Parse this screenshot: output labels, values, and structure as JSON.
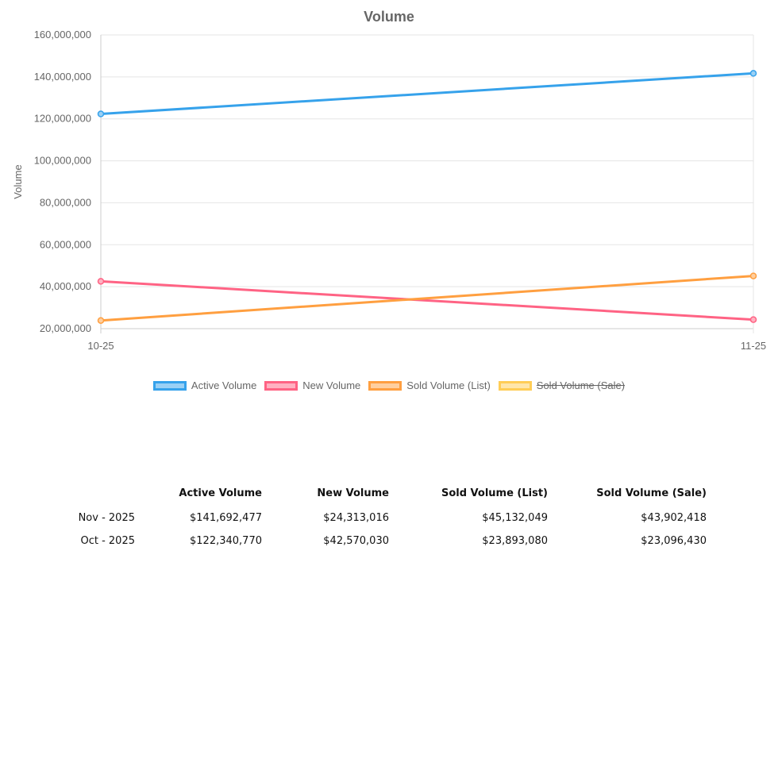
{
  "chart_data": {
    "type": "line",
    "title": "Volume",
    "ylabel": "Volume",
    "xlabel": "",
    "categories": [
      "10-25",
      "11-25"
    ],
    "ylim": [
      20000000,
      160000000
    ],
    "yticks": [
      "20,000,000",
      "40,000,000",
      "60,000,000",
      "80,000,000",
      "100,000,000",
      "120,000,000",
      "140,000,000",
      "160,000,000"
    ],
    "grid": true,
    "legend_position": "bottom",
    "series": [
      {
        "name": "Active Volume",
        "values": [
          122340770,
          141692477
        ],
        "color": "#36a2eb",
        "fill": "#9ad0f5",
        "hidden": false
      },
      {
        "name": "New Volume",
        "values": [
          42570030,
          24313016
        ],
        "color": "#ff6384",
        "fill": "#ffb1c1",
        "hidden": false
      },
      {
        "name": "Sold Volume (List)",
        "values": [
          23893080,
          45132049
        ],
        "color": "#ff9f40",
        "fill": "#ffcf9f",
        "hidden": false
      },
      {
        "name": "Sold Volume (Sale)",
        "values": [
          23096430,
          43902418
        ],
        "color": "#ffcd56",
        "fill": "#ffe6aa",
        "hidden": true
      }
    ]
  },
  "table": {
    "headers": [
      "",
      "Active Volume",
      "New Volume",
      "Sold Volume (List)",
      "Sold Volume (Sale)"
    ],
    "rows": [
      [
        "Nov - 2025",
        "$141,692,477",
        "$24,313,016",
        "$45,132,049",
        "$43,902,418"
      ],
      [
        "Oct - 2025",
        "$122,340,770",
        "$42,570,030",
        "$23,893,080",
        "$23,096,430"
      ]
    ]
  }
}
